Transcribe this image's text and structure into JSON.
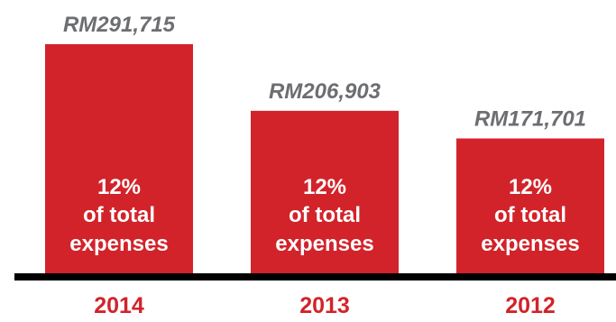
{
  "chart_data": {
    "type": "bar",
    "categories": [
      "2014",
      "2013",
      "2012"
    ],
    "values": [
      291715,
      206903,
      171701
    ],
    "value_labels": [
      "RM291,715",
      "RM206,903",
      "RM171,701"
    ],
    "bar_text": [
      [
        "12%",
        "of total",
        "expenses"
      ],
      [
        "12%",
        "of total",
        "expenses"
      ],
      [
        "12%",
        "of total",
        "expenses"
      ]
    ],
    "title": "",
    "xlabel": "",
    "ylabel": "",
    "ylim": [
      0,
      291715
    ],
    "grid": false,
    "legend": "none"
  },
  "colors": {
    "bar": "#d2232a",
    "bar_text": "#ffffff",
    "value_label": "#6d6e71",
    "category_label": "#d2232a",
    "baseline": "#000000"
  }
}
